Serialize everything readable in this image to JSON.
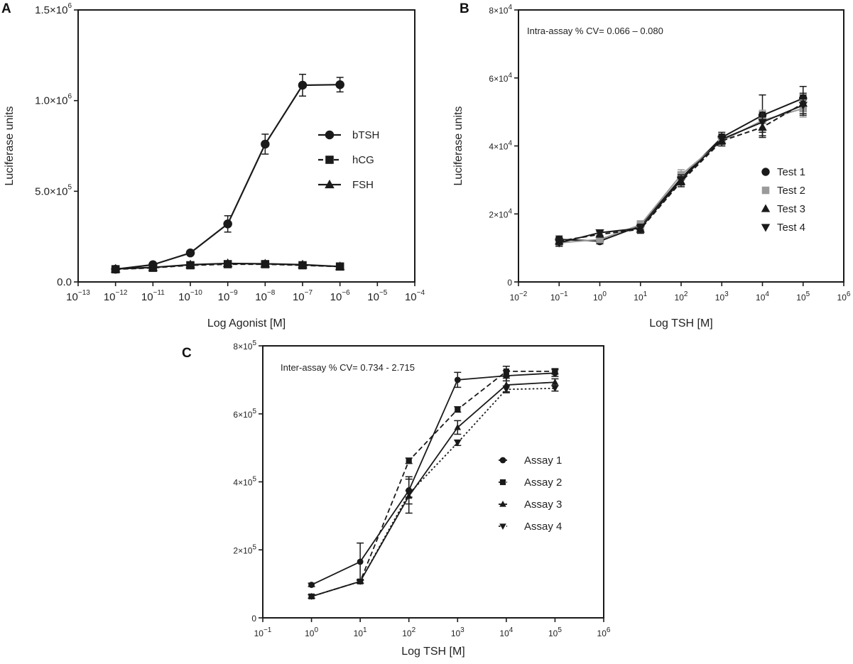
{
  "figure_labels": {
    "a": "A",
    "b": "B",
    "c": "C"
  },
  "chart_data": [
    {
      "panel": "A",
      "type": "line",
      "x_scale": "log",
      "xlabel": "Log Agonist [M]",
      "ylabel": "Luciferase units",
      "xlim_exp": [
        -13,
        -4
      ],
      "x_tick_exponents": [
        -13,
        -12,
        -11,
        -10,
        -9,
        -8,
        -7,
        -6,
        -5,
        -4
      ],
      "ylim": [
        0,
        1500000
      ],
      "y_ticks": [
        {
          "value": 0,
          "mant": "0.0",
          "exp": ""
        },
        {
          "value": 500000,
          "mant": "5.0×10",
          "exp": "5"
        },
        {
          "value": 1000000,
          "mant": "1.0×10",
          "exp": "6"
        },
        {
          "value": 1500000,
          "mant": "1.5×10",
          "exp": "6"
        }
      ],
      "legend_position": "right",
      "series": [
        {
          "name": "bTSH",
          "marker": "circle",
          "color": "#1a1a1a",
          "dash": "solid",
          "x_exp": [
            -12,
            -11,
            -10,
            -9,
            -8,
            -7,
            -6
          ],
          "values": [
            70000,
            95000,
            160000,
            320000,
            760000,
            1085000,
            1088000
          ],
          "errors": [
            8000,
            8000,
            10000,
            45000,
            55000,
            60000,
            40000
          ]
        },
        {
          "name": "hCG",
          "marker": "square",
          "color": "#1a1a1a",
          "dash": "dashed",
          "x_exp": [
            -12,
            -11,
            -10,
            -9,
            -8,
            -7,
            -6
          ],
          "values": [
            70000,
            78000,
            92000,
            98000,
            98000,
            92000,
            85000
          ],
          "errors": [
            6000,
            5000,
            6000,
            6000,
            6000,
            6000,
            6000
          ]
        },
        {
          "name": "FSH",
          "marker": "triangle",
          "color": "#1a1a1a",
          "dash": "solid",
          "x_exp": [
            -12,
            -11,
            -10,
            -9,
            -8,
            -7,
            -6
          ],
          "values": [
            72000,
            80000,
            95000,
            102000,
            100000,
            95000,
            85000
          ],
          "errors": [
            6000,
            5000,
            6000,
            6000,
            6000,
            6000,
            6000
          ]
        }
      ]
    },
    {
      "panel": "B",
      "type": "line",
      "x_scale": "log",
      "xlabel": "Log TSH [M]",
      "ylabel": "Luciferase units",
      "xlim_exp": [
        -2,
        6
      ],
      "x_tick_exponents": [
        -2,
        -1,
        0,
        1,
        2,
        3,
        4,
        5,
        6
      ],
      "ylim": [
        0,
        80000
      ],
      "y_ticks": [
        {
          "value": 0,
          "mant": "0",
          "exp": ""
        },
        {
          "value": 20000,
          "mant": "2×10",
          "exp": "4"
        },
        {
          "value": 40000,
          "mant": "4×10",
          "exp": "4"
        },
        {
          "value": 60000,
          "mant": "6×10",
          "exp": "4"
        },
        {
          "value": 80000,
          "mant": "8×10",
          "exp": "4"
        }
      ],
      "annotation": "Intra-assay % CV= 0.066 – 0.080",
      "legend_position": "right",
      "series": [
        {
          "name": "Test 1",
          "marker": "circle",
          "color": "#1a1a1a",
          "dash": "solid",
          "x_exp": [
            -1,
            0,
            1,
            2,
            3,
            4,
            5
          ],
          "values": [
            12500,
            12000,
            16500,
            30500,
            42500,
            49000,
            54000
          ],
          "errors": [
            1000,
            800,
            1200,
            1500,
            1500,
            6000,
            3500
          ]
        },
        {
          "name": "Test 2",
          "marker": "square",
          "color": "#9a9a9a",
          "dash": "solid",
          "x_exp": [
            -1,
            0,
            1,
            2,
            3,
            4,
            5
          ],
          "values": [
            11500,
            12500,
            16800,
            31500,
            41500,
            47500,
            51000
          ],
          "errors": [
            1000,
            800,
            1200,
            1500,
            1500,
            3000,
            2500
          ]
        },
        {
          "name": "Test 3",
          "marker": "triangle",
          "color": "#1a1a1a",
          "dash": "dashed",
          "x_exp": [
            -1,
            0,
            1,
            2,
            3,
            4,
            5
          ],
          "values": [
            12000,
            14000,
            15500,
            29500,
            41500,
            45500,
            52500
          ],
          "errors": [
            1000,
            800,
            1200,
            1500,
            1500,
            3000,
            3000
          ]
        },
        {
          "name": "Test 4",
          "marker": "triangle-down",
          "color": "#1a1a1a",
          "dash": "solid",
          "x_exp": [
            -1,
            0,
            1,
            2,
            3,
            4,
            5
          ],
          "values": [
            11500,
            14500,
            15800,
            30000,
            42000,
            47000,
            52000
          ],
          "errors": [
            1000,
            800,
            1200,
            1500,
            1500,
            3000,
            3000
          ]
        }
      ]
    },
    {
      "panel": "C",
      "type": "line",
      "x_scale": "log",
      "xlabel": "Log TSH [M]",
      "ylabel": "",
      "xlim_exp": [
        -1,
        6
      ],
      "x_tick_exponents": [
        -1,
        0,
        1,
        2,
        3,
        4,
        5,
        6
      ],
      "ylim": [
        0,
        800000
      ],
      "y_ticks": [
        {
          "value": 0,
          "mant": "0",
          "exp": ""
        },
        {
          "value": 200000,
          "mant": "2×10",
          "exp": "5"
        },
        {
          "value": 400000,
          "mant": "4×10",
          "exp": "5"
        },
        {
          "value": 600000,
          "mant": "6×10",
          "exp": "5"
        },
        {
          "value": 800000,
          "mant": "8×10",
          "exp": "5"
        }
      ],
      "annotation": "Inter-assay % CV= 0.734 - 2.715",
      "legend_position": "right",
      "series": [
        {
          "name": "Assay 1",
          "marker": "circle",
          "color": "#1a1a1a",
          "dash": "solid",
          "x_exp": [
            0,
            1,
            2,
            3,
            4,
            5
          ],
          "values": [
            97000,
            165000,
            375000,
            700000,
            712000,
            720000
          ],
          "errors": [
            5000,
            55000,
            40000,
            22000,
            15000,
            10000
          ]
        },
        {
          "name": "Assay 2",
          "marker": "square",
          "color": "#1a1a1a",
          "dash": "dashed",
          "x_exp": [
            0,
            1,
            2,
            3,
            4,
            5
          ],
          "values": [
            63000,
            107000,
            462000,
            613000,
            725000,
            725000
          ],
          "errors": [
            5000,
            5000,
            8000,
            8000,
            15000,
            8000
          ]
        },
        {
          "name": "Assay 3",
          "marker": "triangle",
          "color": "#1a1a1a",
          "dash": "solid",
          "x_exp": [
            0,
            1,
            2,
            3,
            4,
            5
          ],
          "values": [
            63000,
            107000,
            358000,
            560000,
            685000,
            693000
          ],
          "errors": [
            5000,
            5000,
            50000,
            20000,
            20000,
            10000
          ]
        },
        {
          "name": "Assay 4",
          "marker": "triangle-down",
          "color": "#1a1a1a",
          "dash": "dotted",
          "x_exp": [
            0,
            1,
            2,
            3,
            4,
            5
          ],
          "values": [
            63000,
            107000,
            365000,
            515000,
            672000,
            675000
          ],
          "errors": [
            5000,
            5000,
            10000,
            8000,
            10000,
            8000
          ]
        }
      ]
    }
  ]
}
